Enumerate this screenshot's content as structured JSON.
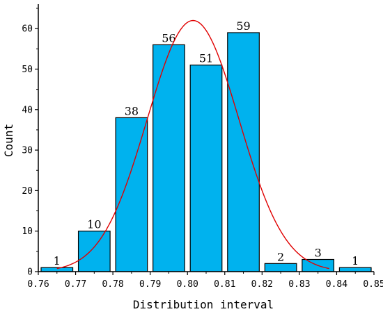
{
  "chart_data": {
    "type": "bar",
    "xlabel": "Distribution interval",
    "ylabel": "Count",
    "xlim": [
      0.76,
      0.85
    ],
    "ylim": [
      0,
      65
    ],
    "x_ticks": [
      "0.76",
      "0.77",
      "0.78",
      "0.79",
      "0.80",
      "0.81",
      "0.82",
      "0.83",
      "0.84",
      "0.85"
    ],
    "y_ticks": [
      "0",
      "10",
      "20",
      "30",
      "40",
      "50",
      "60"
    ],
    "bins": [
      {
        "start": 0.76,
        "end": 0.77
      },
      {
        "start": 0.77,
        "end": 0.78
      },
      {
        "start": 0.78,
        "end": 0.79
      },
      {
        "start": 0.79,
        "end": 0.8
      },
      {
        "start": 0.8,
        "end": 0.81
      },
      {
        "start": 0.81,
        "end": 0.82
      },
      {
        "start": 0.82,
        "end": 0.83
      },
      {
        "start": 0.83,
        "end": 0.84
      },
      {
        "start": 0.84,
        "end": 0.85
      }
    ],
    "values": [
      1,
      10,
      38,
      56,
      51,
      59,
      2,
      3,
      1
    ],
    "data_labels": [
      "1",
      "10",
      "38",
      "56",
      "51",
      "59",
      "2",
      "3",
      "1"
    ],
    "fit_curve": {
      "type": "normal",
      "mean": 0.8015,
      "sd": 0.0123,
      "peak": 62,
      "x_range": [
        0.765,
        0.838
      ]
    },
    "colors": {
      "bar_fill": "#00B2EE",
      "bar_stroke": "#000000",
      "curve": "#E00000"
    }
  }
}
